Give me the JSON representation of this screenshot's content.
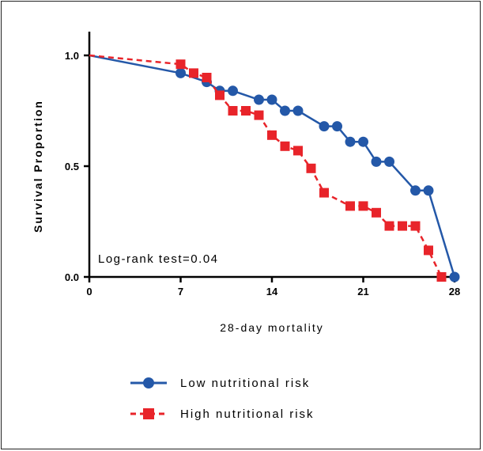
{
  "chart_data": {
    "type": "line",
    "step": true,
    "xlabel": "28-day mortality",
    "ylabel": "Survival Proportion",
    "xlim": [
      0,
      28
    ],
    "ylim": [
      0,
      1
    ],
    "xticks": [
      0,
      7,
      14,
      21,
      28
    ],
    "yticks": [
      0,
      0.5,
      1
    ],
    "ytick_labels": [
      "0.0",
      "0.5",
      "1.0"
    ],
    "grid": false,
    "annotation": "Log-rank test=0.04",
    "legend_position": "bottom",
    "series": [
      {
        "name": "Low nutritional risk",
        "color": "#2458a8",
        "line_style": "solid",
        "marker": "circle",
        "x": [
          0,
          7,
          9,
          10,
          11,
          13,
          14,
          15,
          16,
          18,
          19,
          20,
          21,
          22,
          23,
          25,
          26,
          28
        ],
        "y": [
          1.0,
          0.92,
          0.88,
          0.84,
          0.84,
          0.8,
          0.8,
          0.75,
          0.75,
          0.68,
          0.68,
          0.61,
          0.61,
          0.52,
          0.52,
          0.39,
          0.39,
          0.0
        ]
      },
      {
        "name": "High nutritional risk",
        "color": "#e8242a",
        "line_style": "dashed",
        "marker": "square",
        "x": [
          0,
          7,
          8,
          9,
          10,
          11,
          12,
          13,
          14,
          15,
          16,
          17,
          18,
          20,
          21,
          22,
          23,
          24,
          25,
          26,
          27
        ],
        "y": [
          1.0,
          0.96,
          0.92,
          0.9,
          0.82,
          0.75,
          0.75,
          0.73,
          0.64,
          0.59,
          0.57,
          0.49,
          0.38,
          0.32,
          0.32,
          0.29,
          0.23,
          0.23,
          0.23,
          0.12,
          0.0
        ]
      }
    ]
  }
}
